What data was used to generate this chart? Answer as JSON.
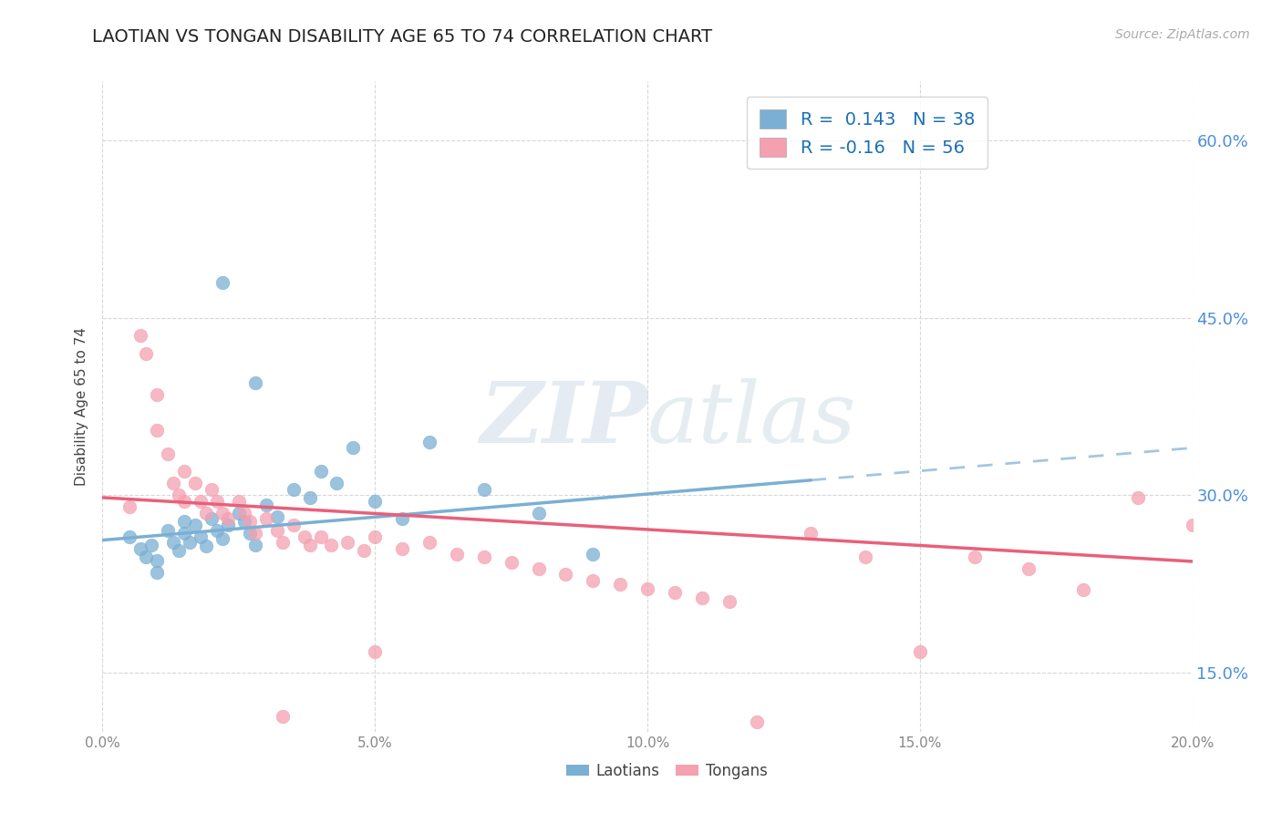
{
  "title": "LAOTIAN VS TONGAN DISABILITY AGE 65 TO 74 CORRELATION CHART",
  "source": "Source: ZipAtlas.com",
  "ylabel": "Disability Age 65 to 74",
  "xlim": [
    0.0,
    0.2
  ],
  "ylim": [
    0.1,
    0.65
  ],
  "xticks": [
    0.0,
    0.05,
    0.1,
    0.15,
    0.2
  ],
  "xticklabels": [
    "0.0%",
    "5.0%",
    "10.0%",
    "15.0%",
    "20.0%"
  ],
  "yticks": [
    0.15,
    0.3,
    0.45,
    0.6
  ],
  "yticklabels": [
    "15.0%",
    "30.0%",
    "45.0%",
    "60.0%"
  ],
  "laotian_color": "#7bafd4",
  "tongan_color": "#f4a0b0",
  "laotian_R": 0.143,
  "laotian_N": 38,
  "tongan_R": -0.16,
  "tongan_N": 56,
  "watermark": "ZIPAtlas",
  "laotian_x": [
    0.005,
    0.007,
    0.008,
    0.009,
    0.01,
    0.01,
    0.012,
    0.013,
    0.014,
    0.015,
    0.015,
    0.016,
    0.017,
    0.018,
    0.019,
    0.02,
    0.021,
    0.022,
    0.023,
    0.025,
    0.026,
    0.027,
    0.028,
    0.03,
    0.032,
    0.035,
    0.038,
    0.04,
    0.043,
    0.046,
    0.05,
    0.055,
    0.06,
    0.07,
    0.08,
    0.09,
    0.022,
    0.028
  ],
  "laotian_y": [
    0.265,
    0.255,
    0.248,
    0.258,
    0.245,
    0.235,
    0.27,
    0.26,
    0.253,
    0.278,
    0.268,
    0.26,
    0.275,
    0.265,
    0.257,
    0.28,
    0.27,
    0.263,
    0.275,
    0.285,
    0.278,
    0.268,
    0.258,
    0.292,
    0.282,
    0.305,
    0.298,
    0.32,
    0.31,
    0.34,
    0.295,
    0.28,
    0.345,
    0.305,
    0.285,
    0.25,
    0.48,
    0.395
  ],
  "tongan_x": [
    0.005,
    0.007,
    0.008,
    0.01,
    0.01,
    0.012,
    0.013,
    0.014,
    0.015,
    0.015,
    0.017,
    0.018,
    0.019,
    0.02,
    0.021,
    0.022,
    0.023,
    0.025,
    0.026,
    0.027,
    0.028,
    0.03,
    0.032,
    0.033,
    0.035,
    0.037,
    0.038,
    0.04,
    0.042,
    0.045,
    0.048,
    0.05,
    0.055,
    0.06,
    0.065,
    0.07,
    0.075,
    0.08,
    0.085,
    0.09,
    0.095,
    0.1,
    0.105,
    0.11,
    0.115,
    0.12,
    0.13,
    0.14,
    0.15,
    0.16,
    0.17,
    0.18,
    0.19,
    0.2,
    0.033,
    0.05
  ],
  "tongan_y": [
    0.29,
    0.435,
    0.42,
    0.385,
    0.355,
    0.335,
    0.31,
    0.3,
    0.32,
    0.295,
    0.31,
    0.295,
    0.285,
    0.305,
    0.295,
    0.285,
    0.28,
    0.295,
    0.285,
    0.278,
    0.268,
    0.28,
    0.27,
    0.26,
    0.275,
    0.265,
    0.258,
    0.265,
    0.258,
    0.26,
    0.253,
    0.265,
    0.255,
    0.26,
    0.25,
    0.248,
    0.243,
    0.238,
    0.233,
    0.228,
    0.225,
    0.221,
    0.218,
    0.213,
    0.21,
    0.108,
    0.268,
    0.248,
    0.168,
    0.248,
    0.238,
    0.22,
    0.298,
    0.275,
    0.113,
    0.168
  ],
  "background_color": "#ffffff",
  "grid_color": "#d8d8d8",
  "title_color": "#222222",
  "axis_label_color": "#444444",
  "tick_color": "#888888",
  "right_tick_color": "#4a90d9",
  "blue_line_solid_start": 0.0,
  "blue_line_solid_end": 0.13,
  "blue_line_y_at_0": 0.262,
  "blue_line_y_at_020": 0.34,
  "pink_line_y_at_0": 0.298,
  "pink_line_y_at_020": 0.244
}
